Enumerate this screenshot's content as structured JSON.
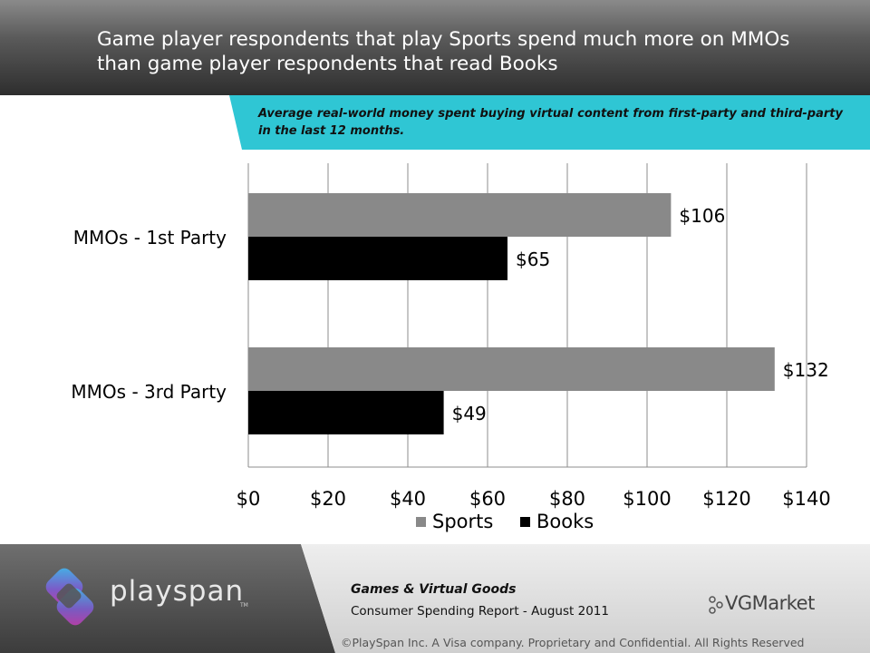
{
  "header": {
    "title": "Game player respondents that play Sports spend much more on MMOs than game player respondents that read Books"
  },
  "banner": {
    "text": "Average real-world money spent buying virtual content from first-party and third-party in the last 12 months."
  },
  "chart_data": {
    "type": "bar",
    "orientation": "horizontal",
    "categories": [
      "MMOs - 1st Party",
      "MMOs - 3rd Party"
    ],
    "series": [
      {
        "name": "Sports",
        "values": [
          106,
          132
        ],
        "labels": [
          "$106",
          "$132"
        ],
        "color": "#898989"
      },
      {
        "name": "Books",
        "values": [
          65,
          49
        ],
        "labels": [
          "$65",
          "$49"
        ],
        "color": "#000000"
      }
    ],
    "xlim": [
      0,
      140
    ],
    "ticks": [
      0,
      20,
      40,
      60,
      80,
      100,
      120,
      140
    ],
    "tick_labels": [
      "$0",
      "$20",
      "$40",
      "$60",
      "$80",
      "$100",
      "$120",
      "$140"
    ],
    "grid": true,
    "legend": "bottom"
  },
  "footer": {
    "brand": "playspan",
    "brand_tm": "TM",
    "report_title": "Games & Virtual Goods",
    "report_subtitle": "Consumer Spending Report  - August 2011",
    "partner": "VGMarket",
    "copyright": "©PlaySpan Inc. A Visa company. Proprietary and Confidential. All Rights Reserved"
  },
  "colors": {
    "accent": "#2fc6d4",
    "header_dark": "#2e2e2e"
  }
}
